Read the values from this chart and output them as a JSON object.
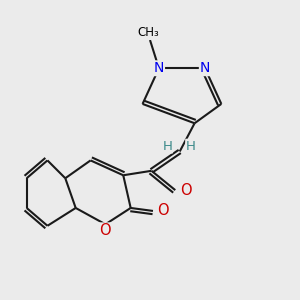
{
  "bg_color": "#ebebeb",
  "bond_color": "#1a1a1a",
  "N_color": "#0000ee",
  "O_color": "#cc0000",
  "H_color": "#3d8b8b",
  "line_width": 1.5,
  "figsize": [
    3.0,
    3.0
  ],
  "dpi": 100,
  "xlim": [
    0,
    10
  ],
  "ylim": [
    0,
    10
  ]
}
